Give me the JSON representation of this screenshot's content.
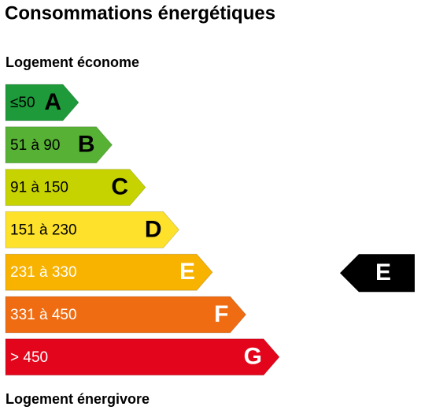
{
  "header": {
    "title": "Consommations énergétiques"
  },
  "top_label": "Logement économe",
  "bottom_label": "Logement énergivore",
  "classes": [
    {
      "range": "≤50",
      "letter": "A",
      "color": "#1e9a3a",
      "text_color": "#000000"
    },
    {
      "range": "51 à 90",
      "letter": "B",
      "color": "#56b134",
      "text_color": "#000000"
    },
    {
      "range": "91 à 150",
      "letter": "C",
      "color": "#c6d300",
      "text_color": "#000000"
    },
    {
      "range": "151 à 230",
      "letter": "D",
      "color": "#fde12a",
      "text_color": "#000000"
    },
    {
      "range": "231 à 330",
      "letter": "E",
      "color": "#f8b200",
      "text_color": "#ffffff"
    },
    {
      "range": "331 à 450",
      "letter": "F",
      "color": "#ef6c12",
      "text_color": "#ffffff"
    },
    {
      "range": "> 450",
      "letter": "G",
      "color": "#e3051b",
      "text_color": "#ffffff"
    }
  ],
  "indicator": {
    "letter": "E",
    "class_index": 4,
    "color": "#000000"
  }
}
